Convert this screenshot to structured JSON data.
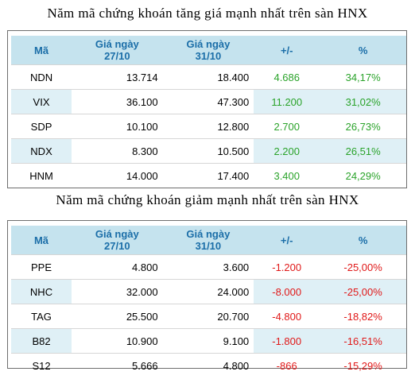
{
  "gainers": {
    "title": "Năm mã chứng khoán tăng giá mạnh nhất trên sàn HNX",
    "headers": {
      "code": "Mã",
      "price1_line1": "Giá ngày",
      "price1_line2": "27/10",
      "price2_line1": "Giá ngày",
      "price2_line2": "31/10",
      "change": "+/-",
      "percent": "%"
    },
    "rows": [
      {
        "code": "NDN",
        "price1": "13.714",
        "price2": "18.400",
        "change": "4.686",
        "percent": "34,17%"
      },
      {
        "code": "VIX",
        "price1": "36.100",
        "price2": "47.300",
        "change": "11.200",
        "percent": "31,02%"
      },
      {
        "code": "SDP",
        "price1": "10.100",
        "price2": "12.800",
        "change": "2.700",
        "percent": "26,73%"
      },
      {
        "code": "NDX",
        "price1": "8.300",
        "price2": "10.500",
        "change": "2.200",
        "percent": "26,51%"
      },
      {
        "code": "HNM",
        "price1": "14.000",
        "price2": "17.400",
        "change": "3.400",
        "percent": "24,29%"
      }
    ]
  },
  "losers": {
    "title": "Năm mã chứng khoán giảm mạnh nhất trên sàn HNX",
    "headers": {
      "code": "Mã",
      "price1_line1": "Giá ngày",
      "price1_line2": "27/10",
      "price2_line1": "Giá ngày",
      "price2_line2": "31/10",
      "change": "+/-",
      "percent": "%"
    },
    "rows": [
      {
        "code": "PPE",
        "price1": "4.800",
        "price2": "3.600",
        "change": "-1.200",
        "percent": "-25,00%"
      },
      {
        "code": "NHC",
        "price1": "32.000",
        "price2": "24.000",
        "change": "-8.000",
        "percent": "-25,00%"
      },
      {
        "code": "TAG",
        "price1": "25.500",
        "price2": "20.700",
        "change": "-4.800",
        "percent": "-18,82%"
      },
      {
        "code": "B82",
        "price1": "10.900",
        "price2": "9.100",
        "change": "-1.800",
        "percent": "-16,51%"
      },
      {
        "code": "S12",
        "price1": "5.666",
        "price2": "4.800",
        "change": "-866",
        "percent": "-15,29%"
      }
    ]
  },
  "colors": {
    "header_bg": "#c5e3ee",
    "header_text": "#1b6ea8",
    "row_shade": "#dff0f6",
    "positive": "#2aa32a",
    "negative": "#e01818"
  }
}
